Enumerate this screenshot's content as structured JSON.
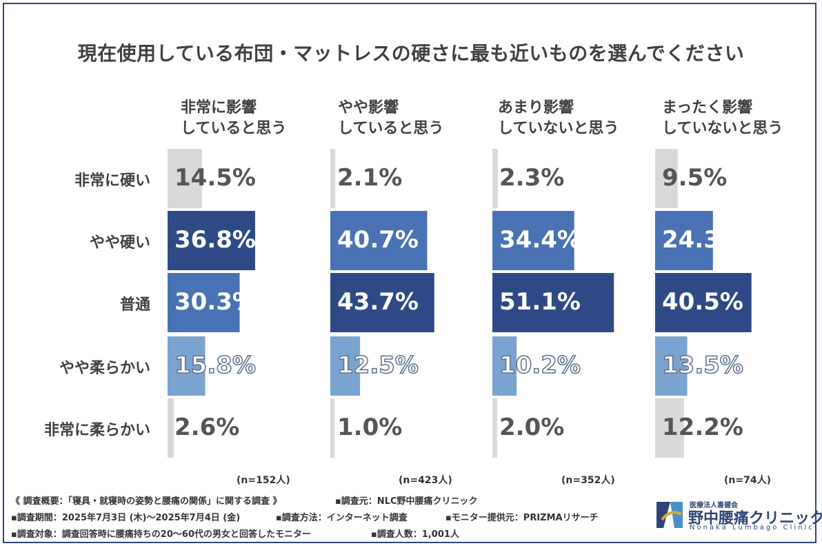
{
  "title": "現在使用している布団・マットレスの硬さに最も近いものを選んでください",
  "chart_data": {
    "type": "bar",
    "title": "現在使用している布団・マットレスの硬さに最も近いものを選んでください",
    "categories": [
      "非常に硬い",
      "やや硬い",
      "普通",
      "やや柔らかい",
      "非常に柔らかい"
    ],
    "series": [
      {
        "name": "非常に影響\nしていると思う",
        "values": [
          14.5,
          36.8,
          30.3,
          15.8,
          2.6
        ],
        "n": "(n=152人)"
      },
      {
        "name": "やや影響\nしていると思う",
        "values": [
          2.1,
          40.7,
          43.7,
          12.5,
          1.0
        ],
        "n": "(n=423人)"
      },
      {
        "name": "あまり影響\nしていないと思う",
        "values": [
          2.3,
          34.4,
          51.1,
          10.2,
          2.0
        ],
        "n": "(n=352人)"
      },
      {
        "name": "まったく影響\nしていないと思う",
        "values": [
          9.5,
          24.3,
          40.5,
          13.5,
          12.2
        ],
        "n": "(n=74人)"
      }
    ],
    "value_suffix": "%",
    "xlim": [
      0,
      51.1
    ]
  },
  "colors": {
    "frame": "#2f4476",
    "hard": "#d9d9d9",
    "mid": "#4872b3",
    "max": "#2e4a86",
    "soft": "#7aa3cf",
    "text": "#404040"
  },
  "footer": {
    "summary": "《 調査概要：「寝具・就寝時の姿勢と腰痛の関係」に関する調査 》",
    "source": "▪調査元：NLC野中腰痛クリニック",
    "period": "▪調査期間：2025年7月3日 (木)～2025年7月4日 (金)",
    "method": "▪調査方法：インターネット調査",
    "provider": "▪モニター提供元：PRIZMAリサーチ",
    "target": "▪調査対象：調査回答時に腰痛持ちの20～60代の男女と回答したモニター",
    "count": "▪調査人数：1,001人"
  },
  "logo": {
    "small": "医療法人喜健会",
    "name": "野中腰痛クリニック",
    "en": "Nonaka Lumbago Clinic"
  }
}
